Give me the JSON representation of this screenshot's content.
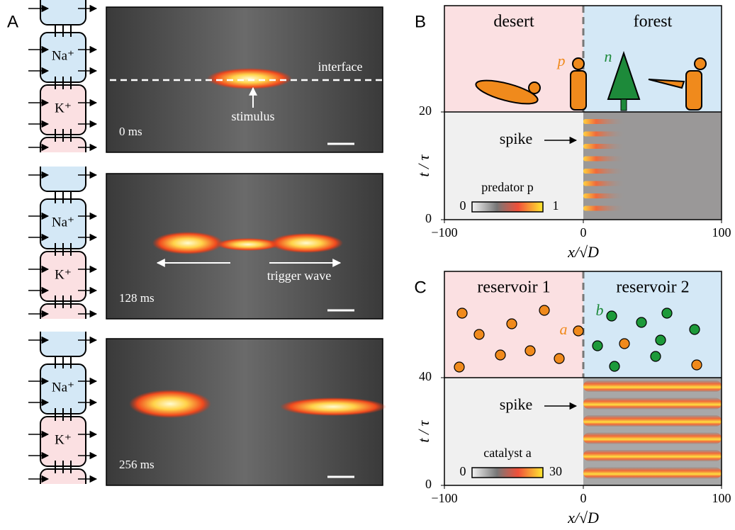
{
  "panel_a": {
    "label": "A",
    "ions": [
      "Na⁺",
      "K⁺"
    ],
    "frames": [
      {
        "time": "0 ms",
        "interface": "interface",
        "stimulus": "stimulus"
      },
      {
        "time": "128 ms",
        "wave": "trigger wave"
      },
      {
        "time": "256 ms"
      }
    ]
  },
  "panel_b": {
    "label": "B",
    "regions": [
      "desert",
      "forest"
    ],
    "species": [
      "p",
      "n"
    ],
    "annotation": "spike",
    "y_label": "t / τ",
    "y_ticks": [
      "0",
      "20"
    ],
    "x_label": "x/√D",
    "x_ticks": [
      "−100",
      "0",
      "100"
    ],
    "colorbar": {
      "label": "predator p",
      "ticks": [
        "0",
        "1"
      ]
    }
  },
  "panel_c": {
    "label": "C",
    "regions": [
      "reservoir 1",
      "reservoir 2"
    ],
    "species": [
      "a",
      "b"
    ],
    "annotation": "spike",
    "y_label": "t / τ",
    "y_ticks": [
      "0",
      "40"
    ],
    "x_label": "x/√D",
    "x_ticks": [
      "−100",
      "0",
      "100"
    ],
    "colorbar": {
      "label": "catalyst a",
      "ticks": [
        "0",
        "30"
      ]
    }
  }
}
